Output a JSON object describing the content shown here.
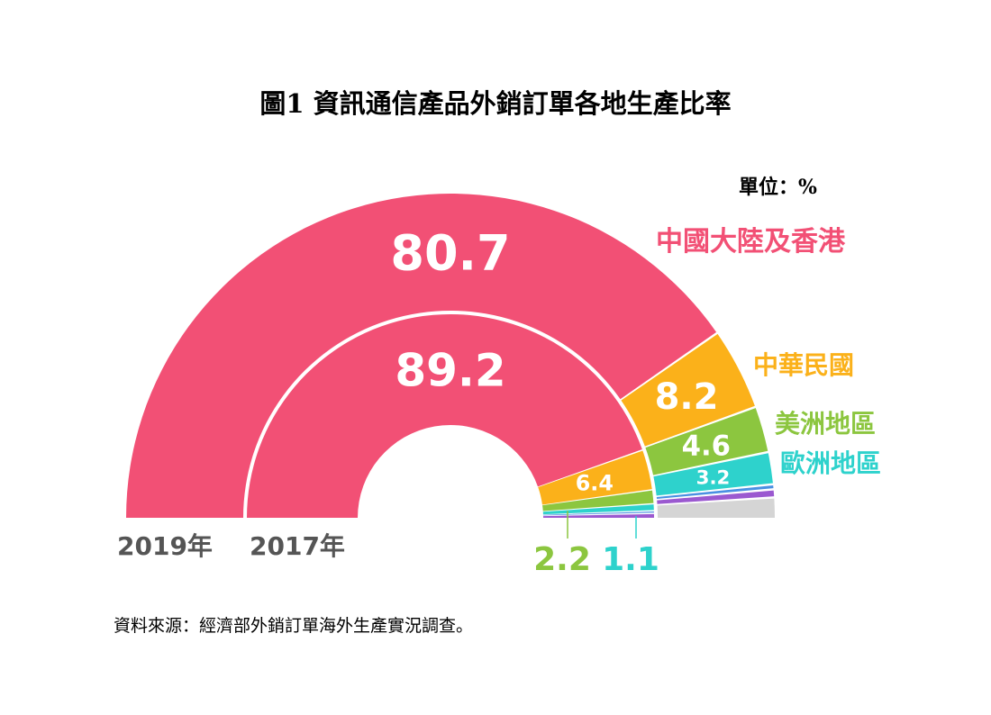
{
  "title": "圖1  資訊通信產品外銷訂單各地生產比率",
  "unit": "單位：%",
  "source": "資料來源：經濟部外銷訂單海外生產實況調查。",
  "chart_data": {
    "type": "pie",
    "variant": "nested-semicircle-donut",
    "rings": [
      {
        "name": "2019年",
        "slices": [
          {
            "label": "中國大陸及香港",
            "value": 80.7,
            "color": "#F25075",
            "show_value": true
          },
          {
            "label": "中華民國",
            "value": 8.2,
            "color": "#FBB11A",
            "show_value": true
          },
          {
            "label": "美洲地區",
            "value": 4.6,
            "color": "#8CC63F",
            "show_value": true
          },
          {
            "label": "歐洲地區",
            "value": 3.2,
            "color": "#2ED2CC",
            "show_value": true
          },
          {
            "label": "",
            "value": 0.5,
            "color": "#4A90E2",
            "show_value": false
          },
          {
            "label": "",
            "value": 0.8,
            "color": "#9B59D0",
            "show_value": false
          },
          {
            "label": "",
            "value": 2.0,
            "color": "#D5D5D5",
            "show_value": false
          }
        ]
      },
      {
        "name": "2017年",
        "slices": [
          {
            "label": "中國大陸及香港",
            "value": 89.2,
            "color": "#F25075",
            "show_value": true
          },
          {
            "label": "中華民國",
            "value": 6.4,
            "color": "#FBB11A",
            "show_value": true
          },
          {
            "label": "美洲地區",
            "value": 2.2,
            "color": "#8CC63F",
            "show_value": false
          },
          {
            "label": "歐洲地區",
            "value": 1.1,
            "color": "#2ED2CC",
            "show_value": false
          },
          {
            "label": "",
            "value": 0.4,
            "color": "#4A90E2",
            "show_value": false
          },
          {
            "label": "",
            "value": 0.7,
            "color": "#9B59D0",
            "show_value": false
          }
        ]
      }
    ],
    "legend": [
      {
        "label": "中國大陸及香港",
        "color": "#F25075"
      },
      {
        "label": "中華民國",
        "color": "#FBB11A"
      },
      {
        "label": "美洲地區",
        "color": "#8CC63F"
      },
      {
        "label": "歐洲地區",
        "color": "#2ED2CC"
      }
    ],
    "callouts": [
      {
        "value": "2.2",
        "color": "#8CC63F"
      },
      {
        "value": "1.1",
        "color": "#2ED2CC"
      }
    ],
    "legend_placement": "right"
  }
}
